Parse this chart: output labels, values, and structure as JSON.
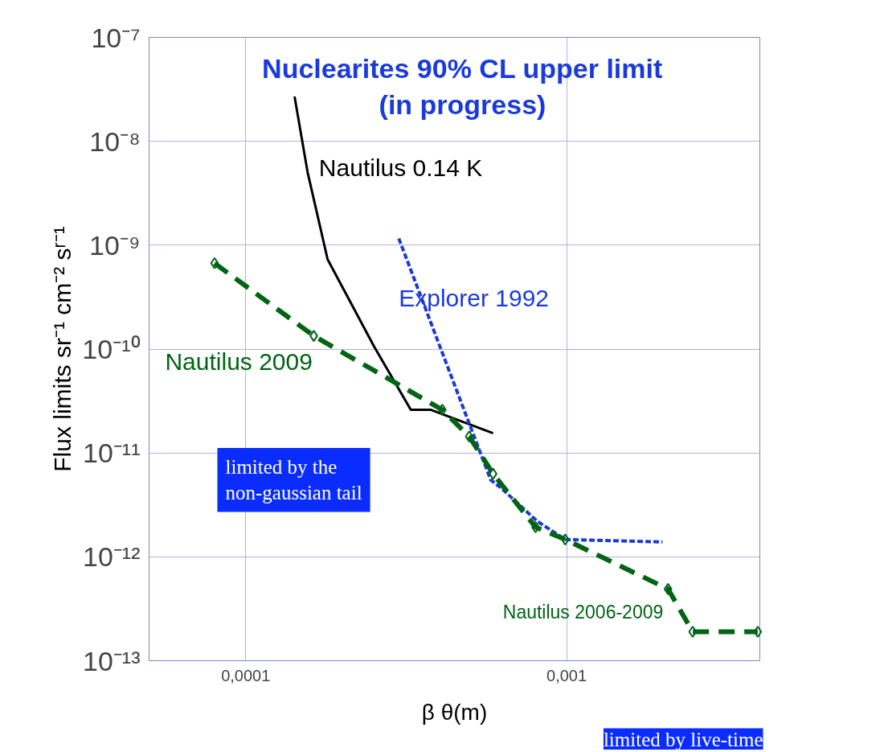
{
  "chart_data": {
    "type": "line",
    "title": "Nuclearites 90% CL upper limit\n(in progress)",
    "xlabel": "β θ(m)",
    "ylabel": "Flux limits sr⁻¹ cm⁻² sʳ⁻¹",
    "log": "xy",
    "grid": true,
    "xlim": [
      5e-05,
      0.004
    ],
    "ylim": [
      1e-13,
      1e-07
    ],
    "xticks": [
      {
        "value": 0.0001,
        "label": "0,0001"
      },
      {
        "value": 0.001,
        "label": "0,001"
      }
    ],
    "yticks": [
      {
        "value": 1e-13,
        "label": "10⁻¹³"
      },
      {
        "value": 1e-12,
        "label": "10⁻¹²"
      },
      {
        "value": 1e-11,
        "label": "10⁻¹¹"
      },
      {
        "value": 1e-10,
        "label": "10⁻¹⁰"
      },
      {
        "value": 1e-09,
        "label": "10⁻⁹"
      },
      {
        "value": 1e-08,
        "label": "10⁻⁸"
      },
      {
        "value": 1e-07,
        "label": "10⁻⁷"
      }
    ],
    "series": [
      {
        "name": "Nautilus 0.14 K",
        "color": "#000000",
        "line_style": "solid",
        "marker": "none",
        "x": [
          0.000142,
          0.000156,
          0.00018,
          0.000252,
          0.000327,
          0.000378,
          0.00059
        ],
        "values": [
          2.7e-08,
          5e-09,
          7.3e-10,
          1.04e-10,
          2.6e-11,
          2.6e-11,
          1.55e-11
        ]
      },
      {
        "name": "Explorer 1992",
        "color": "#1a3adb",
        "line_style": "dotted",
        "marker": "none",
        "x": [
          0.0003,
          0.00058,
          0.000625,
          0.00081,
          0.00099,
          0.00199
        ],
        "values": [
          1.16e-09,
          5.5e-12,
          4.6e-12,
          2.2e-12,
          1.47e-12,
          1.39e-12
        ]
      },
      {
        "name": "Nautilus 2009",
        "color": "#006414",
        "line_style": "dashed",
        "marker": "diamond",
        "x": [
          8e-05,
          0.000163,
          0.00041,
          0.000497,
          0.00059,
          0.0008,
          0.00099,
          0.00207,
          0.00247,
          0.00394
        ],
        "values": [
          6.7e-10,
          1.34e-10,
          2.6e-11,
          1.44e-11,
          6.3e-12,
          1.93e-12,
          1.47e-12,
          4.9e-13,
          1.9e-13,
          1.9e-13
        ]
      }
    ],
    "annotations": [
      {
        "text": "Nautilus 2006-2009",
        "x": 0.00207,
        "y": 4.9e-13
      },
      "limited by the non-gaussian tail",
      "limited by live-time"
    ]
  }
}
